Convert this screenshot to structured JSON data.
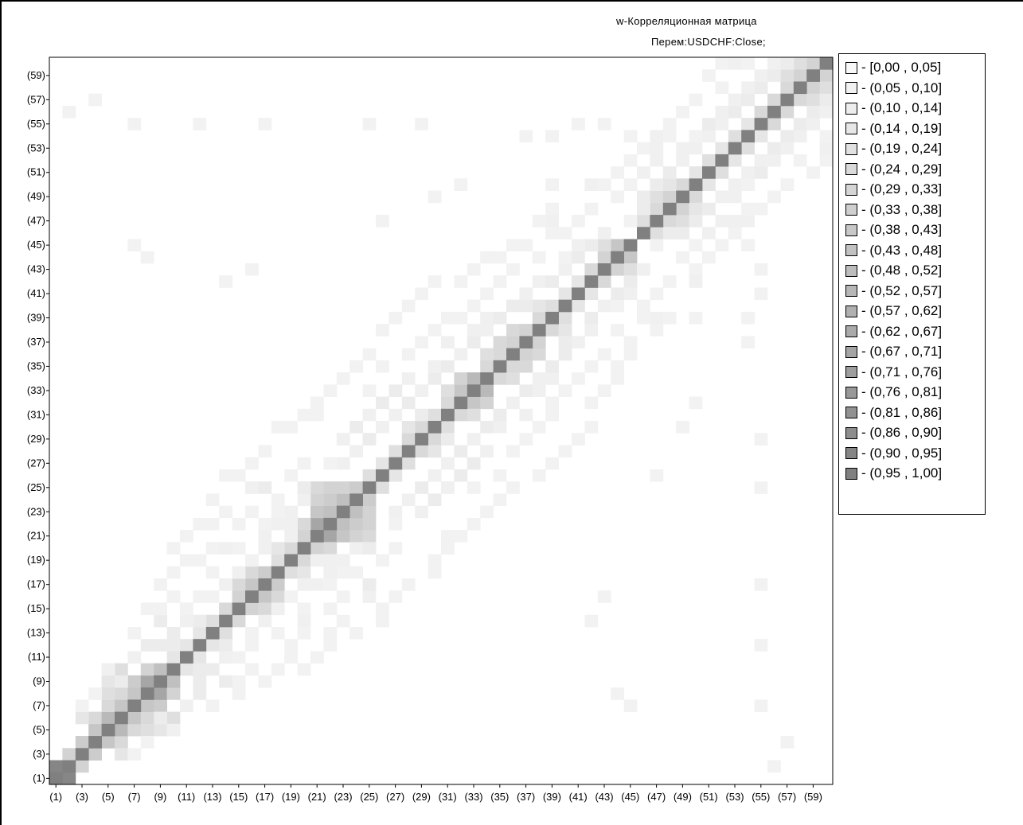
{
  "chart_data": {
    "type": "heatmap",
    "title": "w-Корреляционная матрица",
    "subtitle": "Перем:USDCHF:Close;",
    "n": 60,
    "x_tick_labels": [
      "(1)",
      "(3)",
      "(5)",
      "(7)",
      "(9)",
      "(11)",
      "(13)",
      "(15)",
      "(17)",
      "(19)",
      "(21)",
      "(23)",
      "(25)",
      "(27)",
      "(29)",
      "(31)",
      "(33)",
      "(35)",
      "(37)",
      "(39)",
      "(41)",
      "(43)",
      "(45)",
      "(47)",
      "(49)",
      "(51)",
      "(53)",
      "(55)",
      "(57)",
      "(59)"
    ],
    "y_tick_labels": [
      "(1)",
      "(3)",
      "(5)",
      "(7)",
      "(9)",
      "(11)",
      "(13)",
      "(15)",
      "(17)",
      "(19)",
      "(21)",
      "(23)",
      "(25)",
      "(27)",
      "(29)",
      "(31)",
      "(33)",
      "(35)",
      "(37)",
      "(39)",
      "(41)",
      "(43)",
      "(45)",
      "(47)",
      "(49)",
      "(51)",
      "(53)",
      "(55)",
      "(57)",
      "(59)"
    ],
    "scale_max_gray": "#808080",
    "legend": [
      {
        "label": "- [0,00 , 0,05]",
        "upper": 0.05
      },
      {
        "label": "- (0,05 , 0,10]",
        "upper": 0.1
      },
      {
        "label": "- (0,10 , 0,14]",
        "upper": 0.14
      },
      {
        "label": "- (0,14 , 0,19]",
        "upper": 0.19
      },
      {
        "label": "- (0,19 , 0,24]",
        "upper": 0.24
      },
      {
        "label": "- (0,24 , 0,29]",
        "upper": 0.29
      },
      {
        "label": "- (0,29 , 0,33]",
        "upper": 0.33
      },
      {
        "label": "- (0,33 , 0,38]",
        "upper": 0.38
      },
      {
        "label": "- (0,38 , 0,43]",
        "upper": 0.43
      },
      {
        "label": "- (0,43 , 0,48]",
        "upper": 0.48
      },
      {
        "label": "- (0,48 , 0,52]",
        "upper": 0.52
      },
      {
        "label": "- (0,52 , 0,57]",
        "upper": 0.57
      },
      {
        "label": "- (0,57 , 0,62]",
        "upper": 0.62
      },
      {
        "label": "- (0,62 , 0,67]",
        "upper": 0.67
      },
      {
        "label": "- (0,67 , 0,71]",
        "upper": 0.71
      },
      {
        "label": "- (0,71 , 0,76]",
        "upper": 0.76
      },
      {
        "label": "- (0,76 , 0,81]",
        "upper": 0.81
      },
      {
        "label": "- (0,81 , 0,86]",
        "upper": 0.86
      },
      {
        "label": "- (0,86 , 0,90]",
        "upper": 0.9
      },
      {
        "label": "- (0,90 , 0,95]",
        "upper": 0.95
      },
      {
        "label": "- (0,95 , 1,00]",
        "upper": 1.0
      }
    ],
    "cells": [
      [
        1,
        2,
        0.95
      ],
      [
        2,
        3,
        0.35
      ],
      [
        3,
        4,
        0.4
      ],
      [
        4,
        5,
        0.45
      ],
      [
        4,
        6,
        0.3
      ],
      [
        5,
        6,
        0.55
      ],
      [
        5,
        7,
        0.3
      ],
      [
        6,
        7,
        0.45
      ],
      [
        6,
        8,
        0.3
      ],
      [
        7,
        8,
        0.45
      ],
      [
        7,
        9,
        0.4
      ],
      [
        8,
        9,
        0.7
      ],
      [
        8,
        10,
        0.35
      ],
      [
        9,
        10,
        0.5
      ],
      [
        6,
        10,
        0.25
      ],
      [
        5,
        9,
        0.2
      ],
      [
        3,
        6,
        0.2
      ],
      [
        5,
        8,
        0.25
      ],
      [
        10,
        11,
        0.2
      ],
      [
        11,
        12,
        0.2
      ],
      [
        10,
        12,
        0.15
      ],
      [
        12,
        13,
        0.2
      ],
      [
        13,
        14,
        0.25
      ],
      [
        12,
        14,
        0.15
      ],
      [
        14,
        15,
        0.3
      ],
      [
        15,
        16,
        0.35
      ],
      [
        16,
        17,
        0.45
      ],
      [
        15,
        17,
        0.3
      ],
      [
        16,
        18,
        0.3
      ],
      [
        17,
        18,
        0.4
      ],
      [
        18,
        19,
        0.25
      ],
      [
        19,
        20,
        0.3
      ],
      [
        18,
        20,
        0.2
      ],
      [
        20,
        21,
        0.35
      ],
      [
        21,
        22,
        0.7
      ],
      [
        21,
        23,
        0.45
      ],
      [
        22,
        23,
        0.5
      ],
      [
        22,
        24,
        0.4
      ],
      [
        23,
        24,
        0.5
      ],
      [
        23,
        25,
        0.35
      ],
      [
        24,
        25,
        0.4
      ],
      [
        21,
        24,
        0.35
      ],
      [
        20,
        22,
        0.3
      ],
      [
        21,
        25,
        0.3
      ],
      [
        22,
        25,
        0.35
      ],
      [
        25,
        26,
        0.25
      ],
      [
        26,
        27,
        0.2
      ],
      [
        27,
        28,
        0.25
      ],
      [
        28,
        29,
        0.3
      ],
      [
        29,
        30,
        0.3
      ],
      [
        28,
        30,
        0.2
      ],
      [
        30,
        31,
        0.25
      ],
      [
        31,
        32,
        0.3
      ],
      [
        32,
        33,
        0.45
      ],
      [
        32,
        34,
        0.35
      ],
      [
        33,
        34,
        0.55
      ],
      [
        31,
        33,
        0.25
      ],
      [
        34,
        35,
        0.3
      ],
      [
        35,
        36,
        0.3
      ],
      [
        34,
        36,
        0.25
      ],
      [
        36,
        37,
        0.35
      ],
      [
        35,
        37,
        0.3
      ],
      [
        36,
        38,
        0.3
      ],
      [
        37,
        38,
        0.35
      ],
      [
        38,
        39,
        0.3
      ],
      [
        39,
        40,
        0.25
      ],
      [
        38,
        40,
        0.2
      ],
      [
        40,
        41,
        0.2
      ],
      [
        41,
        42,
        0.2
      ],
      [
        42,
        43,
        0.3
      ],
      [
        43,
        44,
        0.35
      ],
      [
        44,
        45,
        0.45
      ],
      [
        43,
        45,
        0.25
      ],
      [
        46,
        47,
        0.25
      ],
      [
        47,
        48,
        0.3
      ],
      [
        47,
        49,
        0.25
      ],
      [
        48,
        49,
        0.35
      ],
      [
        49,
        50,
        0.3
      ],
      [
        48,
        50,
        0.2
      ],
      [
        50,
        51,
        0.2
      ],
      [
        51,
        52,
        0.25
      ],
      [
        52,
        53,
        0.2
      ],
      [
        53,
        54,
        0.25
      ],
      [
        54,
        55,
        0.2
      ],
      [
        55,
        56,
        0.3
      ],
      [
        56,
        57,
        0.3
      ],
      [
        57,
        58,
        0.3
      ],
      [
        58,
        59,
        0.35
      ],
      [
        59,
        60,
        0.35
      ],
      [
        57,
        59,
        0.25
      ],
      [
        58,
        60,
        0.25
      ],
      [
        9,
        14,
        0.15
      ],
      [
        8,
        12,
        0.15
      ],
      [
        9,
        12,
        0.15
      ],
      [
        10,
        13,
        0.15
      ],
      [
        7,
        11,
        0.12
      ],
      [
        7,
        13,
        0.1
      ],
      [
        6,
        9,
        0.15
      ],
      [
        5,
        10,
        0.12
      ],
      [
        4,
        8,
        0.1
      ],
      [
        3,
        7,
        0.1
      ],
      [
        11,
        14,
        0.12
      ],
      [
        11,
        15,
        0.1
      ],
      [
        12,
        16,
        0.1
      ],
      [
        13,
        16,
        0.1
      ],
      [
        14,
        17,
        0.12
      ],
      [
        16,
        19,
        0.1
      ],
      [
        17,
        20,
        0.12
      ],
      [
        15,
        18,
        0.12
      ],
      [
        13,
        18,
        0.1
      ],
      [
        13,
        20,
        0.1
      ],
      [
        15,
        20,
        0.1
      ],
      [
        14,
        20,
        0.12
      ],
      [
        17,
        21,
        0.12
      ],
      [
        17,
        22,
        0.1
      ],
      [
        18,
        22,
        0.12
      ],
      [
        19,
        22,
        0.12
      ],
      [
        19,
        23,
        0.12
      ],
      [
        18,
        23,
        0.1
      ],
      [
        19,
        21,
        0.12
      ],
      [
        20,
        24,
        0.12
      ],
      [
        18,
        24,
        0.1
      ],
      [
        16,
        25,
        0.12
      ],
      [
        17,
        25,
        0.15
      ],
      [
        20,
        25,
        0.15
      ],
      [
        19,
        26,
        0.1
      ],
      [
        20,
        27,
        0.1
      ],
      [
        22,
        27,
        0.1
      ],
      [
        23,
        27,
        0.12
      ],
      [
        24,
        28,
        0.12
      ],
      [
        23,
        29,
        0.12
      ],
      [
        25,
        29,
        0.15
      ],
      [
        24,
        30,
        0.15
      ],
      [
        26,
        30,
        0.12
      ],
      [
        27,
        31,
        0.12
      ],
      [
        25,
        31,
        0.12
      ],
      [
        26,
        32,
        0.15
      ],
      [
        27,
        33,
        0.15
      ],
      [
        28,
        32,
        0.15
      ],
      [
        29,
        33,
        0.12
      ],
      [
        29,
        31,
        0.15
      ],
      [
        28,
        34,
        0.12
      ],
      [
        30,
        34,
        0.15
      ],
      [
        30,
        35,
        0.12
      ],
      [
        31,
        35,
        0.15
      ],
      [
        32,
        36,
        0.12
      ],
      [
        31,
        37,
        0.12
      ],
      [
        33,
        37,
        0.15
      ],
      [
        33,
        38,
        0.12
      ],
      [
        34,
        38,
        0.12
      ],
      [
        34,
        39,
        0.12
      ],
      [
        35,
        39,
        0.15
      ],
      [
        36,
        40,
        0.15
      ],
      [
        37,
        40,
        0.15
      ],
      [
        37,
        41,
        0.12
      ],
      [
        38,
        42,
        0.12
      ],
      [
        39,
        42,
        0.15
      ],
      [
        40,
        43,
        0.12
      ],
      [
        40,
        44,
        0.1
      ],
      [
        41,
        44,
        0.15
      ],
      [
        42,
        45,
        0.15
      ],
      [
        41,
        45,
        0.12
      ],
      [
        40,
        46,
        0.1
      ],
      [
        43,
        46,
        0.12
      ],
      [
        45,
        47,
        0.1
      ],
      [
        46,
        48,
        0.15
      ],
      [
        46,
        49,
        0.15
      ],
      [
        47,
        50,
        0.15
      ],
      [
        46,
        51,
        0.12
      ],
      [
        47,
        52,
        0.12
      ],
      [
        48,
        51,
        0.15
      ],
      [
        49,
        52,
        0.12
      ],
      [
        49,
        53,
        0.12
      ],
      [
        50,
        53,
        0.12
      ],
      [
        50,
        54,
        0.1
      ],
      [
        51,
        54,
        0.12
      ],
      [
        51,
        55,
        0.15
      ],
      [
        52,
        55,
        0.12
      ],
      [
        52,
        56,
        0.12
      ],
      [
        53,
        56,
        0.15
      ],
      [
        53,
        57,
        0.12
      ],
      [
        54,
        57,
        0.15
      ],
      [
        54,
        58,
        0.12
      ],
      [
        55,
        58,
        0.15
      ],
      [
        55,
        59,
        0.12
      ],
      [
        56,
        59,
        0.15
      ],
      [
        56,
        60,
        0.12
      ],
      [
        57,
        60,
        0.15
      ],
      [
        53,
        60,
        0.12
      ],
      [
        52,
        60,
        0.1
      ],
      [
        54,
        60,
        0.1
      ],
      [
        51,
        59,
        0.1
      ],
      [
        52,
        58,
        0.1
      ],
      [
        50,
        57,
        0.1
      ],
      [
        49,
        56,
        0.1
      ],
      [
        48,
        55,
        0.1
      ],
      [
        47,
        54,
        0.12
      ],
      [
        46,
        53,
        0.1
      ],
      [
        47,
        53,
        0.12
      ],
      [
        48,
        54,
        0.1
      ],
      [
        45,
        52,
        0.1
      ],
      [
        44,
        51,
        0.1
      ],
      [
        43,
        50,
        0.1
      ],
      [
        42,
        50,
        0.12
      ],
      [
        39,
        48,
        0.1
      ],
      [
        39,
        47,
        0.12
      ],
      [
        38,
        47,
        0.1
      ],
      [
        37,
        45,
        0.1
      ],
      [
        36,
        45,
        0.1
      ],
      [
        35,
        44,
        0.1
      ],
      [
        34,
        44,
        0.1
      ],
      [
        33,
        43,
        0.1
      ],
      [
        32,
        42,
        0.1
      ],
      [
        30,
        42,
        0.1
      ],
      [
        29,
        41,
        0.1
      ],
      [
        28,
        40,
        0.1
      ],
      [
        27,
        39,
        0.1
      ],
      [
        26,
        38,
        0.1
      ],
      [
        25,
        36,
        0.1
      ],
      [
        24,
        35,
        0.1
      ],
      [
        23,
        34,
        0.1
      ],
      [
        22,
        33,
        0.1
      ],
      [
        21,
        32,
        0.1
      ],
      [
        21,
        31,
        0.1
      ],
      [
        20,
        31,
        0.1
      ],
      [
        19,
        30,
        0.1
      ],
      [
        18,
        30,
        0.1
      ],
      [
        17,
        28,
        0.1
      ],
      [
        16,
        27,
        0.1
      ],
      [
        15,
        26,
        0.1
      ],
      [
        14,
        26,
        0.1
      ],
      [
        13,
        24,
        0.1
      ],
      [
        13,
        22,
        0.1
      ],
      [
        12,
        22,
        0.1
      ],
      [
        11,
        21,
        0.1
      ],
      [
        11,
        19,
        0.1
      ],
      [
        10,
        20,
        0.1
      ],
      [
        10,
        18,
        0.1
      ],
      [
        9,
        17,
        0.1
      ],
      [
        8,
        15,
        0.1
      ],
      [
        9,
        15,
        0.1
      ],
      [
        10,
        16,
        0.1
      ],
      [
        12,
        19,
        0.1
      ],
      [
        14,
        23,
        0.1
      ],
      [
        15,
        22,
        0.1
      ],
      [
        16,
        23,
        0.1
      ],
      [
        25,
        33,
        0.1
      ],
      [
        26,
        35,
        0.1
      ],
      [
        28,
        36,
        0.1
      ],
      [
        29,
        37,
        0.1
      ],
      [
        30,
        38,
        0.1
      ],
      [
        31,
        39,
        0.1
      ],
      [
        32,
        39,
        0.1
      ],
      [
        33,
        40,
        0.1
      ],
      [
        34,
        41,
        0.1
      ],
      [
        35,
        42,
        0.1
      ],
      [
        36,
        43,
        0.1
      ],
      [
        38,
        44,
        0.1
      ],
      [
        39,
        46,
        0.1
      ],
      [
        41,
        47,
        0.1
      ],
      [
        42,
        48,
        0.1
      ],
      [
        44,
        49,
        0.1
      ],
      [
        45,
        50,
        0.1
      ],
      [
        45,
        54,
        0.1
      ],
      [
        43,
        55,
        0.1
      ],
      [
        37,
        54,
        0.1
      ],
      [
        39,
        54,
        0.1
      ],
      [
        41,
        55,
        0.1
      ],
      [
        29,
        55,
        0.1
      ],
      [
        25,
        55,
        0.1
      ],
      [
        17,
        55,
        0.1
      ],
      [
        12,
        55,
        0.1
      ],
      [
        7,
        55,
        0.1
      ],
      [
        4,
        57,
        0.1
      ],
      [
        2,
        56,
        0.1
      ],
      [
        7,
        45,
        0.1
      ],
      [
        8,
        44,
        0.1
      ],
      [
        26,
        47,
        0.1
      ],
      [
        16,
        43,
        0.1
      ],
      [
        14,
        42,
        0.1
      ],
      [
        30,
        49,
        0.1
      ],
      [
        32,
        50,
        0.1
      ],
      [
        39,
        50,
        0.1
      ]
    ]
  }
}
